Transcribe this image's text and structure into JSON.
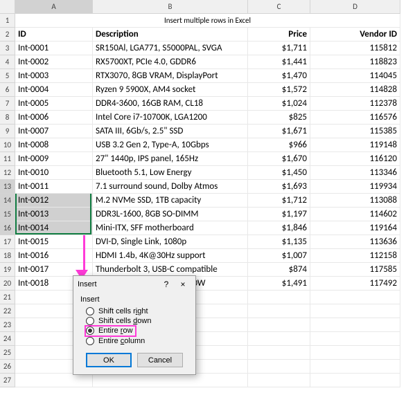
{
  "columns": {
    "a": "A",
    "b": "B",
    "c": "C",
    "d": "D"
  },
  "row_numbers": [
    "1",
    "2",
    "3",
    "4",
    "5",
    "6",
    "7",
    "8",
    "9",
    "10",
    "11",
    "12",
    "13",
    "14",
    "15",
    "16",
    "17",
    "18",
    "19",
    "20",
    "21",
    "22",
    "23",
    "24",
    "25",
    "26",
    "27"
  ],
  "title": "Insert multiple rows in Excel",
  "headers": {
    "id": "ID",
    "desc": "Description",
    "price": "Price",
    "vendor": "Vendor ID"
  },
  "rows": [
    {
      "id": "Int-0001",
      "desc": "SR150Al, LGA771, S5000PAL, SVGA",
      "price": "$1,711",
      "vendor": "115812"
    },
    {
      "id": "Int-0002",
      "desc": "RX5700XT, PCIe 4.0, GDDR6",
      "price": "$1,441",
      "vendor": "118823"
    },
    {
      "id": "Int-0003",
      "desc": "RTX3070, 8GB VRAM, DisplayPort",
      "price": "$1,470",
      "vendor": "114045"
    },
    {
      "id": "Int-0004",
      "desc": "Ryzen 9 5900X, AM4 socket",
      "price": "$1,572",
      "vendor": "114828"
    },
    {
      "id": "Int-0005",
      "desc": "DDR4-3600, 16GB RAM, CL18",
      "price": "$1,024",
      "vendor": "112378"
    },
    {
      "id": "Int-0006",
      "desc": "Intel Core i7-10700K, LGA1200",
      "price": "$825",
      "vendor": "116576"
    },
    {
      "id": "Int-0007",
      "desc": "SATA III, 6Gb/s, 2.5\" SSD",
      "price": "$1,671",
      "vendor": "115385"
    },
    {
      "id": "Int-0008",
      "desc": "USB 3.2 Gen 2, Type-A, 10Gbps",
      "price": "$966",
      "vendor": "119148"
    },
    {
      "id": "Int-0009",
      "desc": "27\" 1440p, IPS panel, 165Hz",
      "price": "$1,670",
      "vendor": "116120"
    },
    {
      "id": "Int-0010",
      "desc": "Bluetooth 5.1, Low Energy",
      "price": "$1,450",
      "vendor": "113346"
    },
    {
      "id": "Int-0011",
      "desc": "7.1 surround sound, Dolby Atmos",
      "price": "$1,693",
      "vendor": "119934"
    },
    {
      "id": "Int-0012",
      "desc": "M.2 NVMe SSD, 1TB capacity",
      "price": "$1,712",
      "vendor": "113088"
    },
    {
      "id": "Int-0013",
      "desc": "DDR3L-1600, 8GB SO-DIMM",
      "price": "$1,197",
      "vendor": "114602"
    },
    {
      "id": "Int-0014",
      "desc": "Mini-ITX, SFF motherboard",
      "price": "$1,846",
      "vendor": "119164"
    },
    {
      "id": "Int-0015",
      "desc": "DVI-D, Single Link, 1080p",
      "price": "$1,135",
      "vendor": "113636"
    },
    {
      "id": "Int-0016",
      "desc": "HDMI 1.4b, 4K@30Hz support",
      "price": "$1,007",
      "vendor": "112158"
    },
    {
      "id": "Int-0017",
      "desc": "Thunderbolt 3, USB-C compatible",
      "price": "$874",
      "vendor": "117585"
    },
    {
      "id": "Int-0018",
      "desc": "80+ Gold PSU, modular, 750W",
      "price": "$1,491",
      "vendor": "117492"
    }
  ],
  "active_cell": "Int-0011",
  "selection": {
    "startRow": 13,
    "endRow": 16
  },
  "dialog": {
    "title": "Insert",
    "help": "?",
    "close": "×",
    "group": "Insert",
    "options": {
      "shift_right": "Shift cells right",
      "shift_down": "Shift cells down",
      "entire_row": "Entire row",
      "entire_column": "Entire column"
    },
    "selected": "entire_row",
    "ok": "OK",
    "cancel": "Cancel"
  },
  "colors": {
    "selection_border": "#107c41",
    "highlight": "#ff3bd8",
    "dialog_bg": "#f0f0f0",
    "sel_fill": "#d0d0d0"
  }
}
